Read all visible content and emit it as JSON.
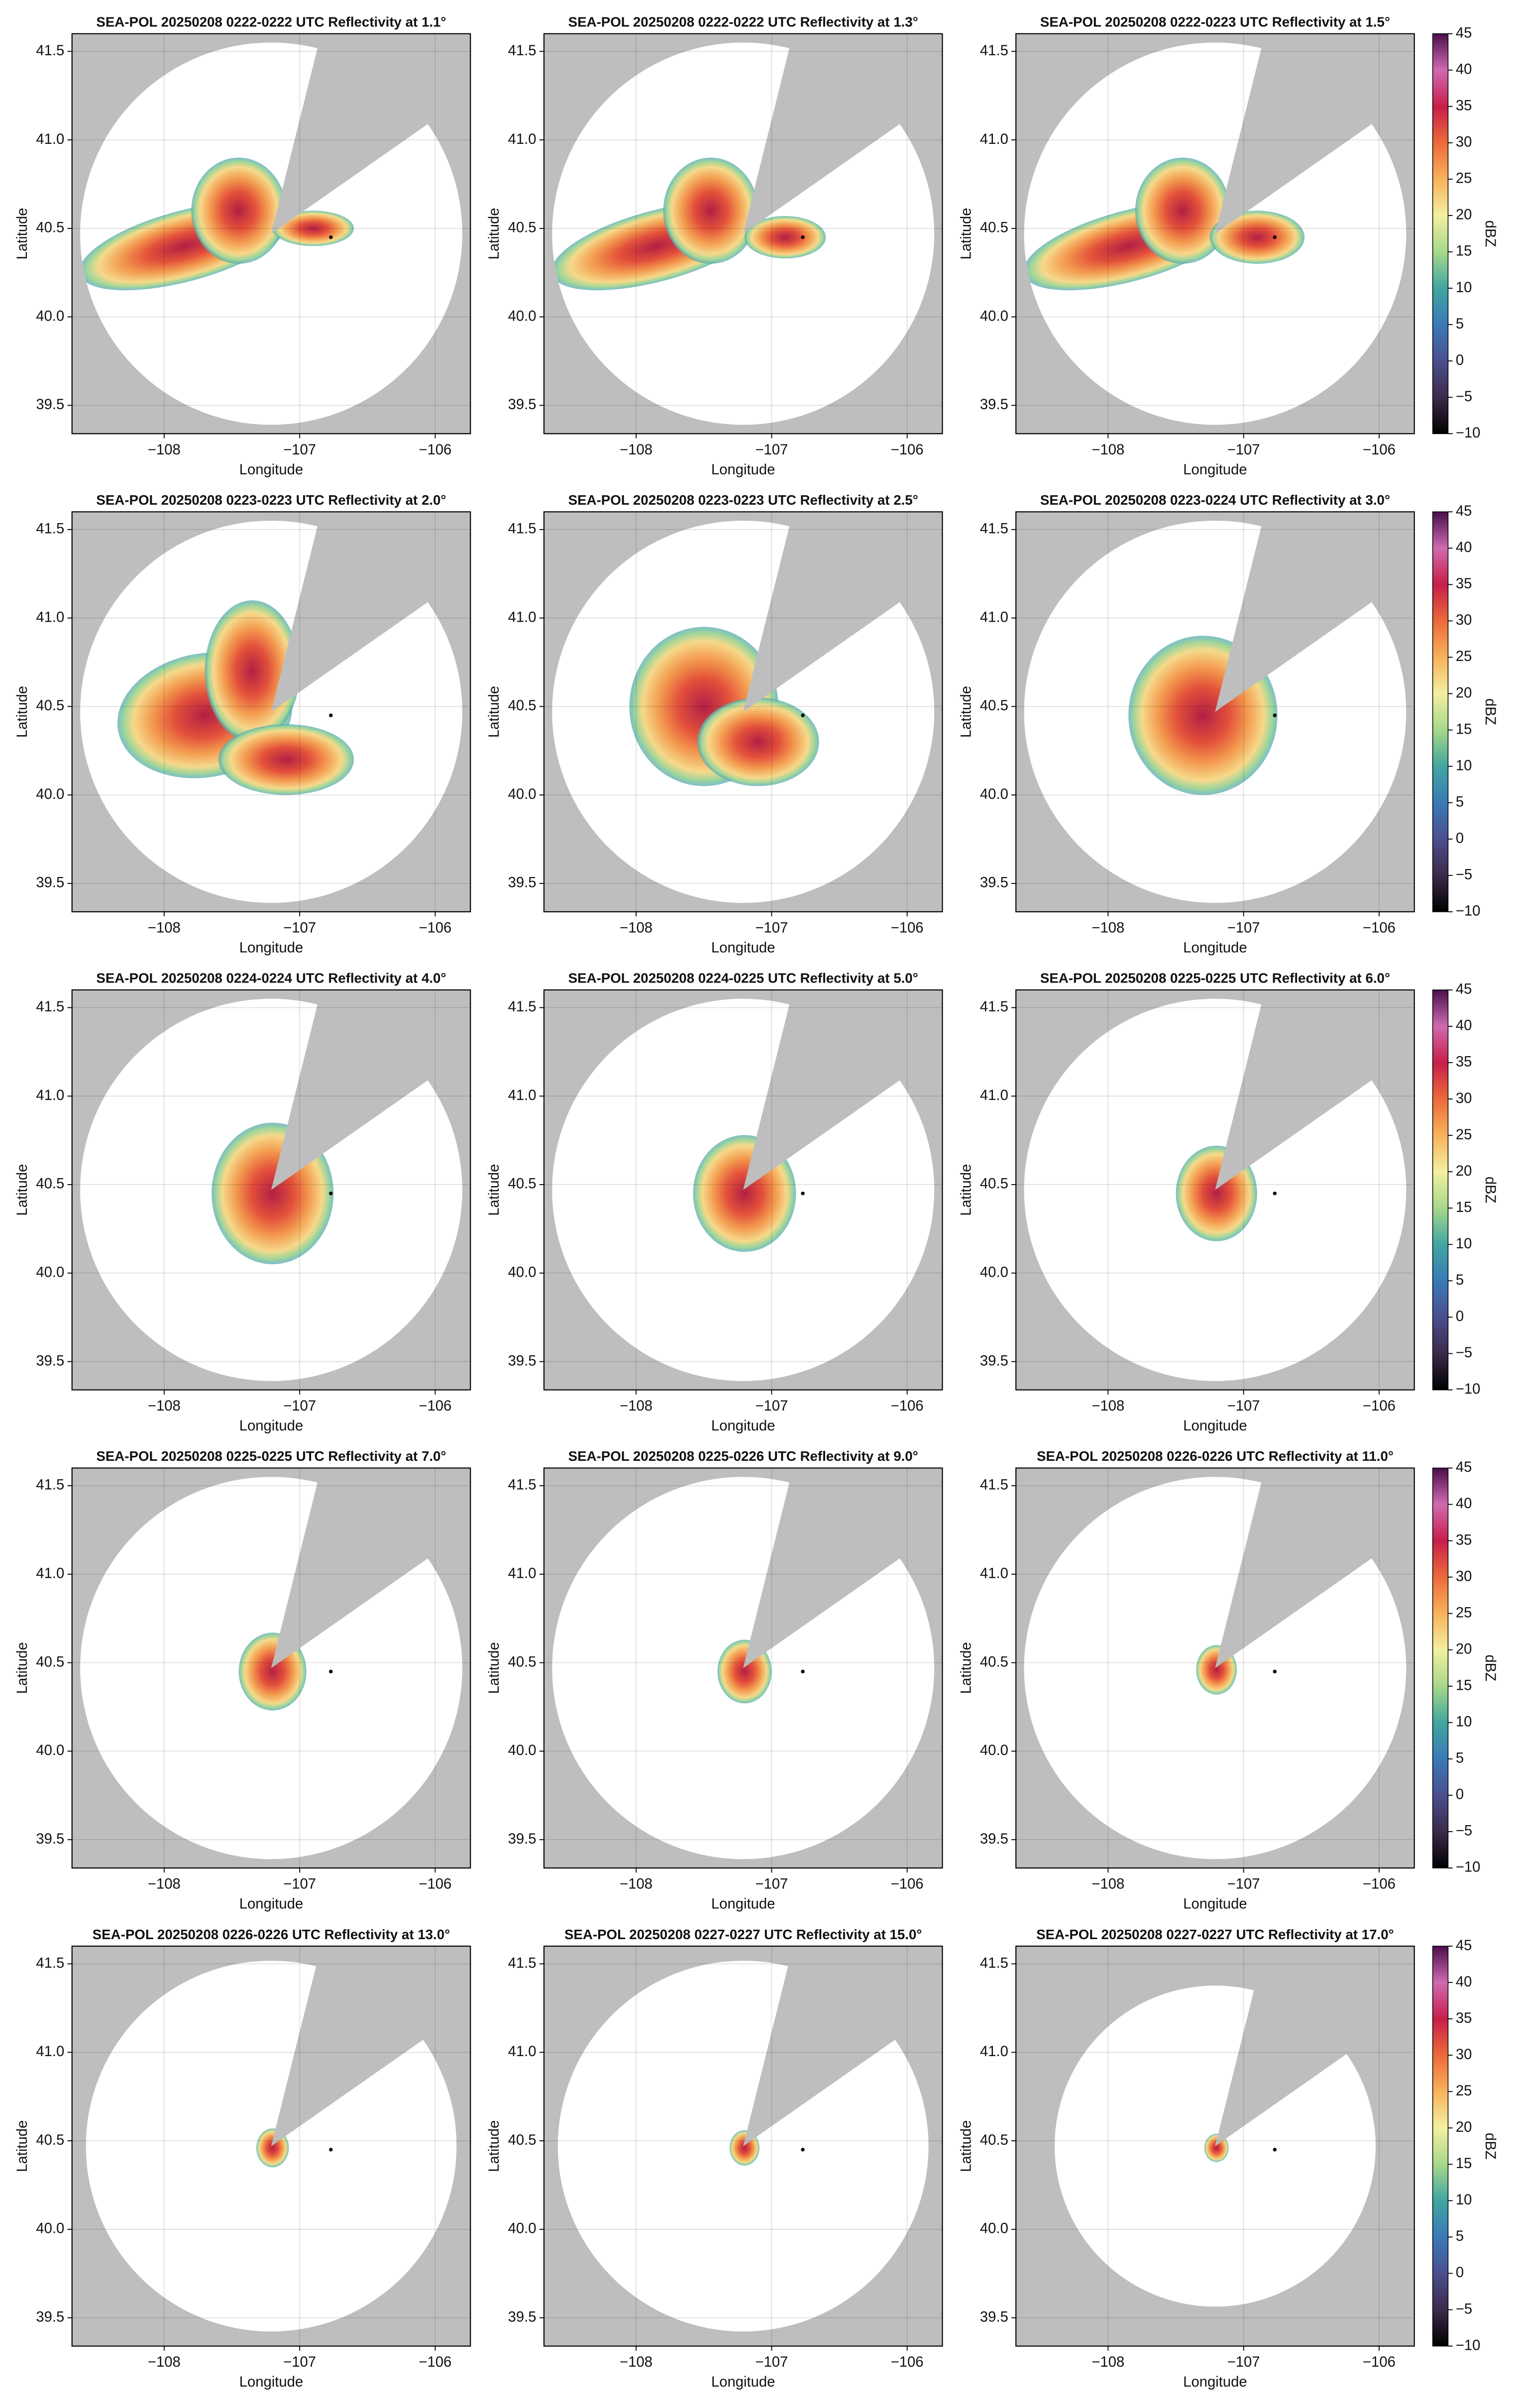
{
  "chart_data": [
    {
      "type": "radar_ppi",
      "title": "SEA-POL 20250208 0222-0222 UTC Reflectivity at 1.1°",
      "xlabel": "Longitude",
      "ylabel": "Latitude",
      "xlim": [
        -108.68,
        -105.74
      ],
      "ylim": [
        39.34,
        41.6
      ],
      "xticks": [
        {
          "value": -108,
          "label": "−108"
        },
        {
          "value": -107,
          "label": "−107"
        },
        {
          "value": -106,
          "label": "−106"
        }
      ],
      "yticks": [
        39.5,
        {
          "value": 40,
          "label": "40.0"
        },
        40.5,
        {
          "value": 41,
          "label": "41.0"
        },
        41.5
      ],
      "grid": true,
      "radar_site": {
        "lon": -106.77,
        "lat": 40.45
      }
    },
    {
      "type": "radar_ppi",
      "title": "SEA-POL 20250208 0222-0222 UTC Reflectivity at 1.3°",
      "xlabel": "Longitude",
      "ylabel": "Latitude",
      "xlim": [
        -108.68,
        -105.74
      ],
      "ylim": [
        39.34,
        41.6
      ],
      "xticks": [
        {
          "value": -108,
          "label": "−108"
        },
        {
          "value": -107,
          "label": "−107"
        },
        {
          "value": -106,
          "label": "−106"
        }
      ],
      "yticks": [
        39.5,
        {
          "value": 40,
          "label": "40.0"
        },
        40.5,
        {
          "value": 41,
          "label": "41.0"
        },
        41.5
      ],
      "grid": true,
      "radar_site": {
        "lon": -106.77,
        "lat": 40.45
      }
    },
    {
      "type": "radar_ppi",
      "title": "SEA-POL 20250208 0222-0223 UTC Reflectivity at 1.5°",
      "xlabel": "Longitude",
      "ylabel": "Latitude",
      "xlim": [
        -108.68,
        -105.74
      ],
      "ylim": [
        39.34,
        41.6
      ],
      "xticks": [
        {
          "value": -108,
          "label": "−108"
        },
        {
          "value": -107,
          "label": "−107"
        },
        {
          "value": -106,
          "label": "−106"
        }
      ],
      "yticks": [
        39.5,
        {
          "value": 40,
          "label": "40.0"
        },
        40.5,
        {
          "value": 41,
          "label": "41.0"
        },
        41.5
      ],
      "grid": true,
      "radar_site": {
        "lon": -106.77,
        "lat": 40.45
      },
      "colorbar": {
        "label": "dBZ",
        "lim": [
          -10,
          45
        ],
        "ticks": [
          {
            "value": -10,
            "label": "−10"
          },
          {
            "value": -5,
            "label": "−5"
          },
          0,
          5,
          10,
          15,
          20,
          25,
          30,
          35,
          40,
          45
        ],
        "colormap": [
          "#000000",
          "#3c2a4a",
          "#4b4f8f",
          "#3a7ab8",
          "#3fa7a0",
          "#a7d88a",
          "#f3f0a0",
          "#f9b25a",
          "#ec6a3a",
          "#c81e4a",
          "#d06ab0",
          "#4a0f4a"
        ]
      }
    },
    {
      "type": "radar_ppi",
      "title": "SEA-POL 20250208 0223-0223 UTC Reflectivity at 2.0°",
      "xlabel": "Longitude",
      "ylabel": "Latitude",
      "xlim": [
        -108.68,
        -105.74
      ],
      "ylim": [
        39.34,
        41.6
      ],
      "xticks": [
        {
          "value": -108,
          "label": "−108"
        },
        {
          "value": -107,
          "label": "−107"
        },
        {
          "value": -106,
          "label": "−106"
        }
      ],
      "yticks": [
        39.5,
        {
          "value": 40,
          "label": "40.0"
        },
        40.5,
        {
          "value": 41,
          "label": "41.0"
        },
        41.5
      ],
      "grid": true,
      "radar_site": {
        "lon": -106.77,
        "lat": 40.45
      }
    },
    {
      "type": "radar_ppi",
      "title": "SEA-POL 20250208 0223-0223 UTC Reflectivity at 2.5°",
      "xlabel": "Longitude",
      "ylabel": "Latitude",
      "xlim": [
        -108.68,
        -105.74
      ],
      "ylim": [
        39.34,
        41.6
      ],
      "xticks": [
        {
          "value": -108,
          "label": "−108"
        },
        {
          "value": -107,
          "label": "−107"
        },
        {
          "value": -106,
          "label": "−106"
        }
      ],
      "yticks": [
        39.5,
        {
          "value": 40,
          "label": "40.0"
        },
        40.5,
        {
          "value": 41,
          "label": "41.0"
        },
        41.5
      ],
      "grid": true,
      "radar_site": {
        "lon": -106.77,
        "lat": 40.45
      }
    },
    {
      "type": "radar_ppi",
      "title": "SEA-POL 20250208 0223-0224 UTC Reflectivity at 3.0°",
      "xlabel": "Longitude",
      "ylabel": "Latitude",
      "xlim": [
        -108.68,
        -105.74
      ],
      "ylim": [
        39.34,
        41.6
      ],
      "xticks": [
        {
          "value": -108,
          "label": "−108"
        },
        {
          "value": -107,
          "label": "−107"
        },
        {
          "value": -106,
          "label": "−106"
        }
      ],
      "yticks": [
        39.5,
        {
          "value": 40,
          "label": "40.0"
        },
        40.5,
        {
          "value": 41,
          "label": "41.0"
        },
        41.5
      ],
      "grid": true,
      "radar_site": {
        "lon": -106.77,
        "lat": 40.45
      },
      "colorbar": {
        "label": "dBZ",
        "lim": [
          -10,
          45
        ],
        "ticks": [
          {
            "value": -10,
            "label": "−10"
          },
          {
            "value": -5,
            "label": "−5"
          },
          0,
          5,
          10,
          15,
          20,
          25,
          30,
          35,
          40,
          45
        ],
        "colormap": [
          "#000000",
          "#3c2a4a",
          "#4b4f8f",
          "#3a7ab8",
          "#3fa7a0",
          "#a7d88a",
          "#f3f0a0",
          "#f9b25a",
          "#ec6a3a",
          "#c81e4a",
          "#d06ab0",
          "#4a0f4a"
        ]
      }
    },
    {
      "type": "radar_ppi",
      "title": "SEA-POL 20250208 0224-0224 UTC Reflectivity at 4.0°",
      "xlabel": "Longitude",
      "ylabel": "Latitude",
      "xlim": [
        -108.68,
        -105.74
      ],
      "ylim": [
        39.34,
        41.6
      ],
      "xticks": [
        {
          "value": -108,
          "label": "−108"
        },
        {
          "value": -107,
          "label": "−107"
        },
        {
          "value": -106,
          "label": "−106"
        }
      ],
      "yticks": [
        39.5,
        {
          "value": 40,
          "label": "40.0"
        },
        40.5,
        {
          "value": 41,
          "label": "41.0"
        },
        41.5
      ],
      "grid": true,
      "radar_site": {
        "lon": -106.77,
        "lat": 40.45
      }
    },
    {
      "type": "radar_ppi",
      "title": "SEA-POL 20250208 0224-0225 UTC Reflectivity at 5.0°",
      "xlabel": "Longitude",
      "ylabel": "Latitude",
      "xlim": [
        -108.68,
        -105.74
      ],
      "ylim": [
        39.34,
        41.6
      ],
      "xticks": [
        {
          "value": -108,
          "label": "−108"
        },
        {
          "value": -107,
          "label": "−107"
        },
        {
          "value": -106,
          "label": "−106"
        }
      ],
      "yticks": [
        39.5,
        {
          "value": 40,
          "label": "40.0"
        },
        40.5,
        {
          "value": 41,
          "label": "41.0"
        },
        41.5
      ],
      "grid": true,
      "radar_site": {
        "lon": -106.77,
        "lat": 40.45
      }
    },
    {
      "type": "radar_ppi",
      "title": "SEA-POL 20250208 0225-0225 UTC Reflectivity at 6.0°",
      "xlabel": "Longitude",
      "ylabel": "Latitude",
      "xlim": [
        -108.68,
        -105.74
      ],
      "ylim": [
        39.34,
        41.6
      ],
      "xticks": [
        {
          "value": -108,
          "label": "−108"
        },
        {
          "value": -107,
          "label": "−107"
        },
        {
          "value": -106,
          "label": "−106"
        }
      ],
      "yticks": [
        39.5,
        {
          "value": 40,
          "label": "40.0"
        },
        40.5,
        {
          "value": 41,
          "label": "41.0"
        },
        41.5
      ],
      "grid": true,
      "radar_site": {
        "lon": -106.77,
        "lat": 40.45
      },
      "colorbar": {
        "label": "dBZ",
        "lim": [
          -10,
          45
        ],
        "ticks": [
          {
            "value": -10,
            "label": "−10"
          },
          {
            "value": -5,
            "label": "−5"
          },
          0,
          5,
          10,
          15,
          20,
          25,
          30,
          35,
          40,
          45
        ],
        "colormap": [
          "#000000",
          "#3c2a4a",
          "#4b4f8f",
          "#3a7ab8",
          "#3fa7a0",
          "#a7d88a",
          "#f3f0a0",
          "#f9b25a",
          "#ec6a3a",
          "#c81e4a",
          "#d06ab0",
          "#4a0f4a"
        ]
      }
    },
    {
      "type": "radar_ppi",
      "title": "SEA-POL 20250208 0225-0225 UTC Reflectivity at 7.0°",
      "xlabel": "Longitude",
      "ylabel": "Latitude",
      "xlim": [
        -108.68,
        -105.74
      ],
      "ylim": [
        39.34,
        41.6
      ],
      "xticks": [
        {
          "value": -108,
          "label": "−108"
        },
        {
          "value": -107,
          "label": "−107"
        },
        {
          "value": -106,
          "label": "−106"
        }
      ],
      "yticks": [
        39.5,
        {
          "value": 40,
          "label": "40.0"
        },
        40.5,
        {
          "value": 41,
          "label": "41.0"
        },
        41.5
      ],
      "grid": true,
      "radar_site": {
        "lon": -106.77,
        "lat": 40.45
      }
    },
    {
      "type": "radar_ppi",
      "title": "SEA-POL 20250208 0225-0226 UTC Reflectivity at 9.0°",
      "xlabel": "Longitude",
      "ylabel": "Latitude",
      "xlim": [
        -108.68,
        -105.74
      ],
      "ylim": [
        39.34,
        41.6
      ],
      "xticks": [
        {
          "value": -108,
          "label": "−108"
        },
        {
          "value": -107,
          "label": "−107"
        },
        {
          "value": -106,
          "label": "−106"
        }
      ],
      "yticks": [
        39.5,
        {
          "value": 40,
          "label": "40.0"
        },
        40.5,
        {
          "value": 41,
          "label": "41.0"
        },
        41.5
      ],
      "grid": true,
      "radar_site": {
        "lon": -106.77,
        "lat": 40.45
      }
    },
    {
      "type": "radar_ppi",
      "title": "SEA-POL 20250208 0226-0226 UTC Reflectivity at 11.0°",
      "xlabel": "Longitude",
      "ylabel": "Latitude",
      "xlim": [
        -108.68,
        -105.74
      ],
      "ylim": [
        39.34,
        41.6
      ],
      "xticks": [
        {
          "value": -108,
          "label": "−108"
        },
        {
          "value": -107,
          "label": "−107"
        },
        {
          "value": -106,
          "label": "−106"
        }
      ],
      "yticks": [
        39.5,
        {
          "value": 40,
          "label": "40.0"
        },
        40.5,
        {
          "value": 41,
          "label": "41.0"
        },
        41.5
      ],
      "grid": true,
      "radar_site": {
        "lon": -106.77,
        "lat": 40.45
      },
      "colorbar": {
        "label": "dBZ",
        "lim": [
          -10,
          45
        ],
        "ticks": [
          {
            "value": -10,
            "label": "−10"
          },
          {
            "value": -5,
            "label": "−5"
          },
          0,
          5,
          10,
          15,
          20,
          25,
          30,
          35,
          40,
          45
        ],
        "colormap": [
          "#000000",
          "#3c2a4a",
          "#4b4f8f",
          "#3a7ab8",
          "#3fa7a0",
          "#a7d88a",
          "#f3f0a0",
          "#f9b25a",
          "#ec6a3a",
          "#c81e4a",
          "#d06ab0",
          "#4a0f4a"
        ]
      }
    },
    {
      "type": "radar_ppi",
      "title": "SEA-POL 20250208 0226-0226 UTC Reflectivity at 13.0°",
      "xlabel": "Longitude",
      "ylabel": "Latitude",
      "xlim": [
        -108.68,
        -105.74
      ],
      "ylim": [
        39.34,
        41.6
      ],
      "xticks": [
        {
          "value": -108,
          "label": "−108"
        },
        {
          "value": -107,
          "label": "−107"
        },
        {
          "value": -106,
          "label": "−106"
        }
      ],
      "yticks": [
        39.5,
        {
          "value": 40,
          "label": "40.0"
        },
        40.5,
        {
          "value": 41,
          "label": "41.0"
        },
        41.5
      ],
      "grid": true,
      "radar_site": {
        "lon": -106.77,
        "lat": 40.45
      }
    },
    {
      "type": "radar_ppi",
      "title": "SEA-POL 20250208 0227-0227 UTC Reflectivity at 15.0°",
      "xlabel": "Longitude",
      "ylabel": "Latitude",
      "xlim": [
        -108.68,
        -105.74
      ],
      "ylim": [
        39.34,
        41.6
      ],
      "xticks": [
        {
          "value": -108,
          "label": "−108"
        },
        {
          "value": -107,
          "label": "−107"
        },
        {
          "value": -106,
          "label": "−106"
        }
      ],
      "yticks": [
        39.5,
        {
          "value": 40,
          "label": "40.0"
        },
        40.5,
        {
          "value": 41,
          "label": "41.0"
        },
        41.5
      ],
      "grid": true,
      "radar_site": {
        "lon": -106.77,
        "lat": 40.45
      }
    },
    {
      "type": "radar_ppi",
      "title": "SEA-POL 20250208 0227-0227 UTC Reflectivity at 17.0°",
      "xlabel": "Longitude",
      "ylabel": "Latitude",
      "xlim": [
        -108.68,
        -105.74
      ],
      "ylim": [
        39.34,
        41.6
      ],
      "xticks": [
        {
          "value": -108,
          "label": "−108"
        },
        {
          "value": -107,
          "label": "−107"
        },
        {
          "value": -106,
          "label": "−106"
        }
      ],
      "yticks": [
        39.5,
        {
          "value": 40,
          "label": "40.0"
        },
        40.5,
        {
          "value": 41,
          "label": "41.0"
        },
        41.5
      ],
      "grid": true,
      "radar_site": {
        "lon": -106.77,
        "lat": 40.45
      },
      "colorbar": {
        "label": "dBZ",
        "lim": [
          -10,
          45
        ],
        "ticks": [
          {
            "value": -10,
            "label": "−10"
          },
          {
            "value": -5,
            "label": "−5"
          },
          0,
          5,
          10,
          15,
          20,
          25,
          30,
          35,
          40,
          45
        ],
        "colormap": [
          "#000000",
          "#3c2a4a",
          "#4b4f8f",
          "#3a7ab8",
          "#3fa7a0",
          "#a7d88a",
          "#f3f0a0",
          "#f9b25a",
          "#ec6a3a",
          "#c81e4a",
          "#d06ab0",
          "#4a0f4a"
        ]
      }
    }
  ]
}
